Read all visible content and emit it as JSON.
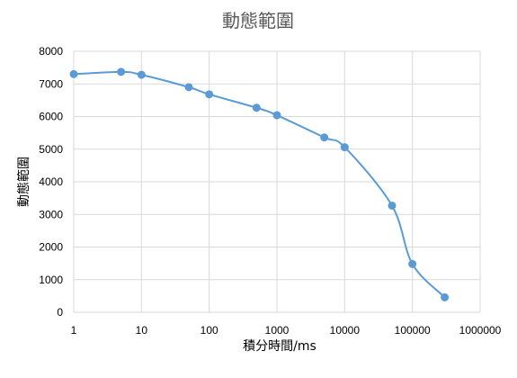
{
  "chart_data": {
    "type": "line",
    "title": "動態範圍",
    "xlabel": "積分時間/ms",
    "ylabel": "動態範圍",
    "x_scale": "log",
    "xlim": [
      1,
      1000000
    ],
    "ylim": [
      0,
      8000
    ],
    "x_ticks": [
      "1",
      "10",
      "100",
      "1000",
      "10000",
      "100000",
      "1000000"
    ],
    "y_ticks": [
      "0",
      "1000",
      "2000",
      "3000",
      "4000",
      "5000",
      "6000",
      "7000",
      "8000"
    ],
    "grid": true,
    "legend": "none",
    "series": [
      {
        "color": "#5b9bd5",
        "x": [
          1,
          5,
          10,
          50,
          100,
          500,
          1000,
          5000,
          10000,
          50000,
          100000,
          300000
        ],
        "y": [
          7300,
          7370,
          7280,
          6900,
          6680,
          6270,
          6040,
          5360,
          5060,
          3270,
          1480,
          460
        ]
      }
    ]
  }
}
